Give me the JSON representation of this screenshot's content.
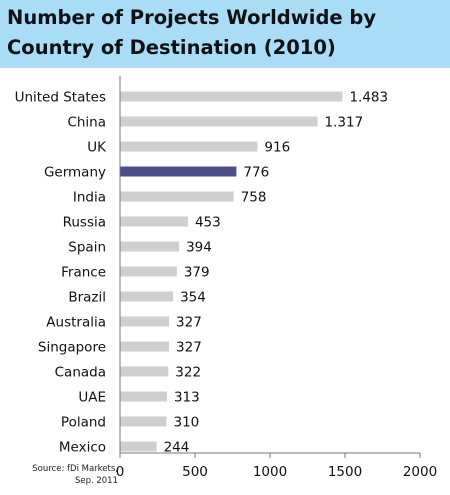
{
  "header": {
    "title_line1": "Number of Projects Worldwide by",
    "title_line2": "Country of Destination (2010)"
  },
  "source": {
    "line1": "Source: fDi Markets,",
    "line2": "Sep. 2011"
  },
  "colors": {
    "header_bg": "#a9dcf5",
    "bar_default": "#cfcfcf",
    "bar_highlight": "#4d4f88"
  },
  "chart_data": {
    "type": "bar",
    "orientation": "horizontal",
    "title": "Number of Projects Worldwide by Country of Destination (2010)",
    "categories": [
      "United States",
      "China",
      "UK",
      "Germany",
      "India",
      "Russia",
      "Spain",
      "France",
      "Brazil",
      "Australia",
      "Singapore",
      "Canada",
      "UAE",
      "Poland",
      "Mexico"
    ],
    "values": [
      1483,
      1317,
      916,
      776,
      758,
      453,
      394,
      379,
      354,
      327,
      327,
      322,
      313,
      310,
      244
    ],
    "value_labels": [
      "1.483",
      "1.317",
      "916",
      "776",
      "758",
      "453",
      "394",
      "379",
      "354",
      "327",
      "327",
      "322",
      "313",
      "310",
      "244"
    ],
    "highlight": "Germany",
    "xlim": [
      0,
      2000
    ],
    "xticks": [
      0,
      500,
      1000,
      1500,
      2000
    ],
    "xtick_labels": [
      "0",
      "500",
      "1000",
      "1500",
      "2000"
    ],
    "grid": false
  }
}
